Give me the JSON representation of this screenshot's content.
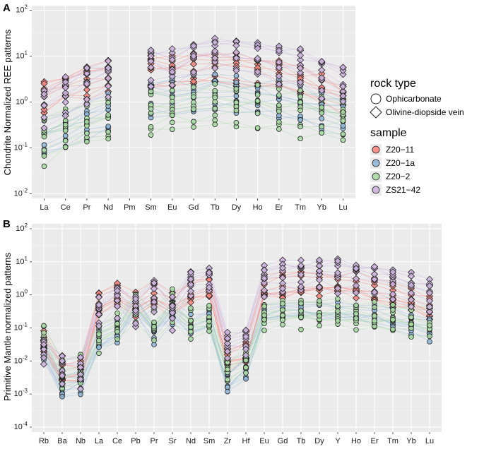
{
  "chart_data": [
    {
      "panel": "A",
      "type": "line",
      "ylabel": "Chondrite Normalized REE patterns",
      "yscale": "log",
      "ylim": [
        0.01,
        100
      ],
      "yticks": [
        "10^-2",
        "10^-1",
        "10^0",
        "10^1",
        "10^2"
      ],
      "categories": [
        "La",
        "Ce",
        "Pr",
        "Nd",
        "Pm",
        "Sm",
        "Eu",
        "Gd",
        "Tb",
        "Dy",
        "Ho",
        "Er",
        "Tm",
        "Yb",
        "Lu"
      ],
      "series": [
        {
          "name": "Z20-11",
          "rock": "Olivine-diopside vein",
          "values": [
            1.2,
            2.0,
            2.6,
            3.2,
            null,
            4.5,
            4.0,
            5.0,
            5.2,
            5.0,
            4.2,
            3.3,
            2.4,
            1.7,
            1.1
          ]
        },
        {
          "name": "Z20-1a",
          "rock": "Ophicarbonate",
          "values": [
            0.12,
            0.2,
            0.3,
            0.45,
            null,
            0.9,
            1.0,
            1.3,
            1.35,
            1.3,
            1.1,
            0.9,
            0.7,
            0.55,
            0.4
          ]
        },
        {
          "name": "Z20-2",
          "rock": "Ophicarbonate",
          "values": [
            0.14,
            0.22,
            0.32,
            0.42,
            null,
            0.55,
            0.6,
            0.7,
            0.75,
            0.75,
            0.7,
            0.65,
            0.55,
            0.5,
            0.45
          ]
        },
        {
          "name": "ZS21-42",
          "rock": "Olivine-diopside vein",
          "values": [
            0.8,
            1.5,
            2.5,
            4.0,
            null,
            7.0,
            6.0,
            10.0,
            12.0,
            12.0,
            10.0,
            8.0,
            6.0,
            4.0,
            2.5
          ]
        }
      ]
    },
    {
      "panel": "B",
      "type": "line",
      "ylabel": "Primitive Mantle normalized patterns",
      "yscale": "log",
      "ylim": [
        0.0001,
        100
      ],
      "yticks": [
        "10^-4",
        "10^-3",
        "10^-2",
        "10^-1",
        "10^0",
        "10^1",
        "10^2"
      ],
      "categories": [
        "Rb",
        "Ba",
        "Nb",
        "La",
        "Ce",
        "Pb",
        "Pr",
        "Sr",
        "Nd",
        "Sm",
        "Zr",
        "Hf",
        "Eu",
        "Gd",
        "Tb",
        "Dy",
        "Y",
        "Ho",
        "Er",
        "Tm",
        "Yb",
        "Lu"
      ],
      "series": [
        {
          "name": "Z20-11",
          "rock": "Olivine-diopside vein",
          "values": [
            0.03,
            0.004,
            0.004,
            0.5,
            1.0,
            0.4,
            0.9,
            0.4,
            1.2,
            1.5,
            0.01,
            0.015,
            1.5,
            1.7,
            2.0,
            2.0,
            1.8,
            1.7,
            1.3,
            0.9,
            0.6,
            0.4
          ]
        },
        {
          "name": "Z20-1a",
          "rock": "Ophicarbonate",
          "values": [
            0.03,
            0.002,
            0.003,
            0.05,
            0.1,
            0.6,
            0.1,
            0.4,
            0.15,
            0.25,
            0.003,
            0.008,
            0.35,
            0.45,
            0.45,
            0.45,
            0.4,
            0.35,
            0.3,
            0.22,
            0.17,
            0.12
          ]
        },
        {
          "name": "Z20-2",
          "rock": "Ophicarbonate",
          "values": [
            0.05,
            0.004,
            0.006,
            0.06,
            0.12,
            0.5,
            0.12,
            0.5,
            0.15,
            0.2,
            0.005,
            0.01,
            0.25,
            0.3,
            0.3,
            0.3,
            0.28,
            0.26,
            0.24,
            0.2,
            0.18,
            0.15
          ]
        },
        {
          "name": "ZS21-42",
          "rock": "Olivine-diopside vein",
          "values": [
            0.02,
            0.006,
            0.005,
            0.3,
            0.7,
            0.3,
            1.0,
            0.3,
            2.0,
            3.0,
            0.03,
            0.04,
            2.5,
            3.5,
            4.0,
            4.5,
            4.0,
            3.8,
            3.0,
            2.2,
            1.5,
            1.0
          ]
        }
      ]
    }
  ],
  "labels": {
    "panel_a": "A",
    "panel_b": "B",
    "ylabel_a": "Chondrite Normalized REE patterns",
    "ylabel_b": "Primitive Mantle normalized patterns"
  },
  "legend": {
    "shape_title": "rock type",
    "shapes": [
      {
        "label": "Ophicarbonate",
        "shape": "circle"
      },
      {
        "label": "Olivine-diopside vein",
        "shape": "diamond"
      }
    ],
    "color_title": "sample",
    "colors": [
      {
        "label": "Z20−11",
        "color": "#f8877f"
      },
      {
        "label": "Z20−1a",
        "color": "#8fb7d9"
      },
      {
        "label": "Z20−2",
        "color": "#a8dba3"
      },
      {
        "label": "ZS21−42",
        "color": "#cdb3df"
      }
    ]
  }
}
